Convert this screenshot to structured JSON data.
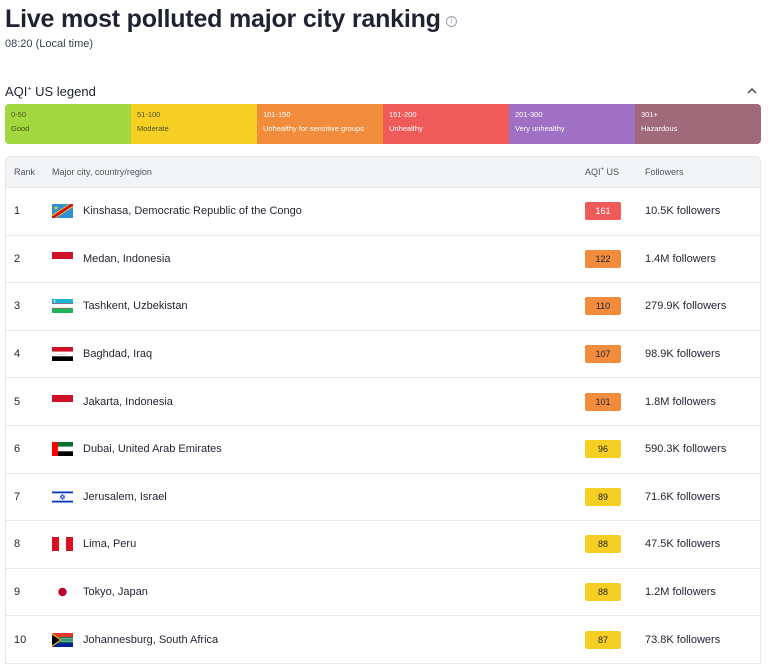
{
  "header": {
    "title": "Live most polluted major city ranking",
    "info_icon": "info-icon",
    "local_time": "08:20 (Local time)"
  },
  "legend": {
    "title": "AQI",
    "title_sup": "+",
    "title_suffix": " US legend",
    "toggle_icon": "chevron-up-icon",
    "items": [
      {
        "range": "0-50",
        "label": "Good",
        "color": "#a3d93f"
      },
      {
        "range": "51-100",
        "label": "Moderate",
        "color": "#f5cf24"
      },
      {
        "range": "101-150",
        "label": "Unhealthy for sensitive groups",
        "color": "#f08c3c"
      },
      {
        "range": "151-200",
        "label": "Unhealthy",
        "color": "#ef5b5b"
      },
      {
        "range": "201-300",
        "label": "Very unhealthy",
        "color": "#a070c4"
      },
      {
        "range": "301+",
        "label": "Hazardous",
        "color": "#a06a7a"
      }
    ]
  },
  "table": {
    "headers": {
      "rank": "Rank",
      "city": "Major city, country/region",
      "aqi": "AQI",
      "aqi_sup": "+",
      "aqi_suffix": " US",
      "followers": "Followers"
    },
    "rows": [
      {
        "rank": "1",
        "city": "Kinshasa, Democratic Republic of the Congo",
        "aqi": "161",
        "followers": "10.5K followers",
        "flag": "cd-flag-icon",
        "aqi_color": "#ef5b5b"
      },
      {
        "rank": "2",
        "city": "Medan, Indonesia",
        "aqi": "122",
        "followers": "1.4M followers",
        "flag": "id-flag-icon",
        "aqi_color": "#f08c3c"
      },
      {
        "rank": "3",
        "city": "Tashkent, Uzbekistan",
        "aqi": "110",
        "followers": "279.9K followers",
        "flag": "uz-flag-icon",
        "aqi_color": "#f08c3c"
      },
      {
        "rank": "4",
        "city": "Baghdad, Iraq",
        "aqi": "107",
        "followers": "98.9K followers",
        "flag": "iq-flag-icon",
        "aqi_color": "#f08c3c"
      },
      {
        "rank": "5",
        "city": "Jakarta, Indonesia",
        "aqi": "101",
        "followers": "1.8M followers",
        "flag": "id-flag-icon",
        "aqi_color": "#f08c3c"
      },
      {
        "rank": "6",
        "city": "Dubai, United Arab Emirates",
        "aqi": "96",
        "followers": "590.3K followers",
        "flag": "ae-flag-icon",
        "aqi_color": "#f5cf24"
      },
      {
        "rank": "7",
        "city": "Jerusalem, Israel",
        "aqi": "89",
        "followers": "71.6K followers",
        "flag": "il-flag-icon",
        "aqi_color": "#f5cf24"
      },
      {
        "rank": "8",
        "city": "Lima, Peru",
        "aqi": "88",
        "followers": "47.5K followers",
        "flag": "pe-flag-icon",
        "aqi_color": "#f5cf24"
      },
      {
        "rank": "9",
        "city": "Tokyo, Japan",
        "aqi": "88",
        "followers": "1.2M followers",
        "flag": "jp-flag-icon",
        "aqi_color": "#f5cf24"
      },
      {
        "rank": "10",
        "city": "Johannesburg, South Africa",
        "aqi": "87",
        "followers": "73.8K followers",
        "flag": "za-flag-icon",
        "aqi_color": "#f5cf24"
      }
    ]
  }
}
